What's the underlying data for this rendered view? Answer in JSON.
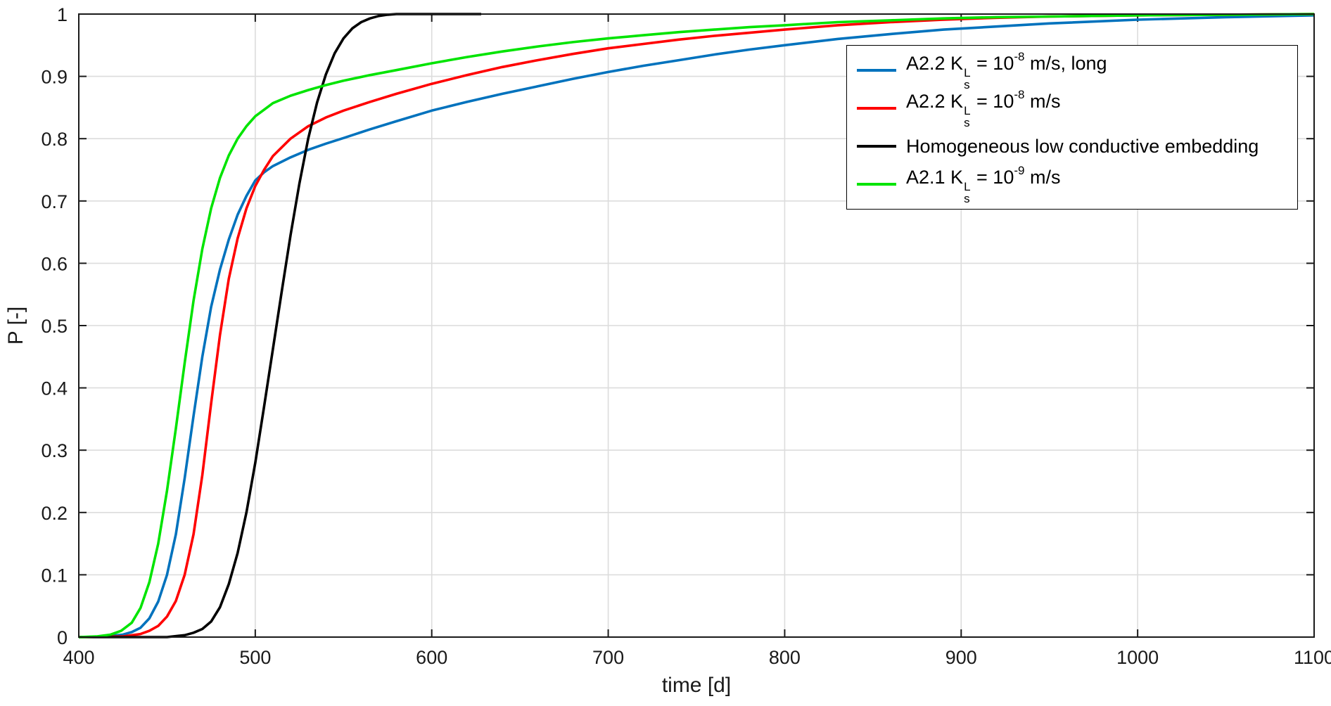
{
  "chart_data": {
    "type": "line",
    "title": "",
    "xlabel": "time [d]",
    "ylabel": "P [-]",
    "xlim": [
      400,
      1100
    ],
    "ylim": [
      0,
      1
    ],
    "x_ticks": [
      400,
      500,
      600,
      700,
      800,
      900,
      1000,
      1100
    ],
    "y_tick_labels": [
      "0",
      "0.1",
      "0.2",
      "0.3",
      "0.4",
      "0.5",
      "0.6",
      "0.7",
      "0.8",
      "0.9",
      "1"
    ],
    "grid": true,
    "grid_color": "#DCDCDC",
    "axis_color": "#1a1a1a",
    "legend_position": "northeast",
    "series": [
      {
        "key": "a22-long",
        "name": "A2.2 K_s^L = 10^-8 m/s, long",
        "color": "#0072BD",
        "x": [
          400,
          415,
          425,
          430,
          435,
          440,
          445,
          450,
          455,
          460,
          465,
          470,
          475,
          480,
          485,
          490,
          495,
          500,
          505,
          510,
          520,
          530,
          540,
          550,
          565,
          580,
          600,
          620,
          640,
          660,
          680,
          700,
          720,
          740,
          760,
          780,
          800,
          830,
          860,
          890,
          920,
          950,
          1000,
          1050,
          1100
        ],
        "y": [
          0,
          0.001,
          0.004,
          0.008,
          0.015,
          0.03,
          0.057,
          0.1,
          0.165,
          0.255,
          0.355,
          0.45,
          0.53,
          0.59,
          0.638,
          0.678,
          0.708,
          0.733,
          0.746,
          0.756,
          0.77,
          0.782,
          0.792,
          0.801,
          0.815,
          0.828,
          0.845,
          0.859,
          0.872,
          0.884,
          0.896,
          0.907,
          0.917,
          0.926,
          0.935,
          0.943,
          0.95,
          0.96,
          0.968,
          0.975,
          0.98,
          0.985,
          0.991,
          0.995,
          0.998
        ]
      },
      {
        "key": "a22",
        "name": "A2.2 K_s^L = 10^-8 m/s",
        "color": "#FF0000",
        "x": [
          400,
          425,
          435,
          440,
          445,
          450,
          455,
          460,
          465,
          470,
          475,
          480,
          485,
          490,
          495,
          500,
          505,
          510,
          520,
          530,
          540,
          550,
          565,
          580,
          600,
          620,
          640,
          660,
          680,
          700,
          720,
          740,
          760,
          780,
          800,
          830,
          860,
          890,
          920,
          950,
          1000,
          1050,
          1100
        ],
        "y": [
          0,
          0.001,
          0.005,
          0.01,
          0.018,
          0.033,
          0.058,
          0.1,
          0.165,
          0.26,
          0.375,
          0.485,
          0.575,
          0.64,
          0.688,
          0.724,
          0.75,
          0.772,
          0.8,
          0.82,
          0.834,
          0.845,
          0.859,
          0.872,
          0.888,
          0.902,
          0.915,
          0.926,
          0.936,
          0.945,
          0.952,
          0.959,
          0.965,
          0.97,
          0.975,
          0.982,
          0.987,
          0.991,
          0.994,
          0.996,
          0.998,
          0.999,
          1.0
        ]
      },
      {
        "key": "homogeneous",
        "name": "Homogeneous low conductive embedding",
        "color": "#000000",
        "x": [
          400,
          450,
          460,
          465,
          470,
          475,
          480,
          485,
          490,
          495,
          500,
          505,
          510,
          515,
          520,
          525,
          530,
          535,
          540,
          545,
          550,
          555,
          560,
          565,
          570,
          575,
          580,
          590,
          600,
          615,
          628
        ],
        "y": [
          0,
          0.0,
          0.003,
          0.007,
          0.013,
          0.025,
          0.048,
          0.085,
          0.135,
          0.2,
          0.28,
          0.37,
          0.462,
          0.555,
          0.645,
          0.728,
          0.8,
          0.858,
          0.903,
          0.937,
          0.961,
          0.977,
          0.987,
          0.993,
          0.997,
          0.999,
          1.0,
          1.0,
          1.0,
          1.0,
          1.0
        ]
      },
      {
        "key": "a21",
        "name": "A2.1 K_s^L = 10^-9 m/s",
        "color": "#00E400",
        "x": [
          400,
          410,
          418,
          424,
          430,
          435,
          440,
          445,
          450,
          455,
          460,
          465,
          470,
          475,
          480,
          485,
          490,
          495,
          500,
          510,
          520,
          530,
          540,
          550,
          565,
          580,
          600,
          620,
          640,
          660,
          680,
          700,
          720,
          740,
          760,
          780,
          800,
          830,
          860,
          890,
          920,
          950,
          1000,
          1050,
          1100
        ],
        "y": [
          0,
          0.001,
          0.004,
          0.01,
          0.023,
          0.047,
          0.088,
          0.15,
          0.235,
          0.335,
          0.44,
          0.54,
          0.623,
          0.688,
          0.737,
          0.773,
          0.8,
          0.82,
          0.836,
          0.857,
          0.869,
          0.878,
          0.886,
          0.893,
          0.902,
          0.91,
          0.921,
          0.931,
          0.94,
          0.948,
          0.955,
          0.961,
          0.966,
          0.971,
          0.975,
          0.979,
          0.982,
          0.987,
          0.99,
          0.993,
          0.995,
          0.996,
          0.998,
          0.999,
          1.0
        ]
      }
    ]
  },
  "legend": {
    "border_color": "#000000",
    "background": "#FFFFFF",
    "items": [
      {
        "pre": "A2.2 K",
        "sup": "L",
        "sub": "s",
        "mid": " = 10",
        "exp": "-8",
        "post": " m/s, long",
        "color": "#0072BD"
      },
      {
        "pre": "A2.2 K",
        "sup": "L",
        "sub": "s",
        "mid": " = 10",
        "exp": "-8",
        "post": " m/s",
        "color": "#FF0000"
      },
      {
        "pre": "Homogeneous low conductive embedding",
        "sup": "",
        "sub": "",
        "mid": "",
        "exp": "",
        "post": "",
        "color": "#000000"
      },
      {
        "pre": "A2.1 K",
        "sup": "L",
        "sub": "s",
        "mid": " = 10",
        "exp": "-9",
        "post": " m/s",
        "color": "#00E400"
      }
    ]
  }
}
